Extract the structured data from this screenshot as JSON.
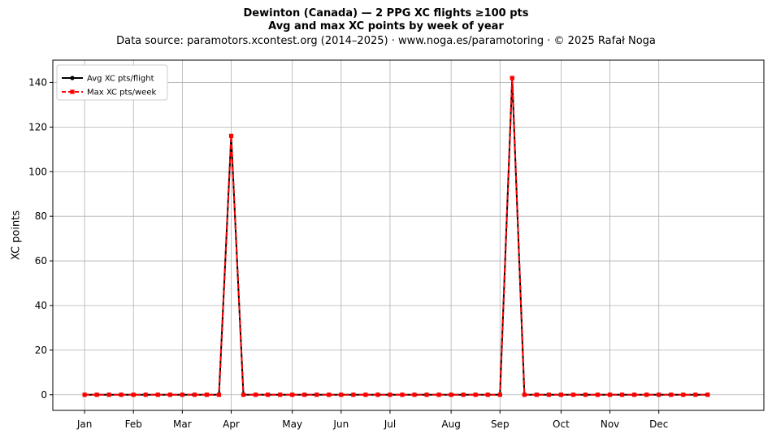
{
  "figure": {
    "title_line1": "Dewinton (Canada)  —  2 PPG XC flights ≥100 pts",
    "title_line2": "Avg and max XC points by week of year",
    "subtitle": "Data source: paramotors.xcontest.org (2014–2025)  ·  www.noga.es/paramotoring  ·  © 2025 Rafał Noga"
  },
  "chart_data": {
    "type": "line",
    "ylabel": "XC points",
    "xlabel": "",
    "ylim": [
      -7,
      150
    ],
    "xlim": [
      -2.6,
      55.6
    ],
    "y_ticks": [
      0,
      20,
      40,
      60,
      80,
      100,
      120,
      140
    ],
    "x_ticks": [
      {
        "label": "Jan",
        "week": 0
      },
      {
        "label": "Feb",
        "week": 4
      },
      {
        "label": "Mar",
        "week": 8
      },
      {
        "label": "Apr",
        "week": 12
      },
      {
        "label": "May",
        "week": 17
      },
      {
        "label": "Jun",
        "week": 21
      },
      {
        "label": "Jul",
        "week": 25
      },
      {
        "label": "Aug",
        "week": 30
      },
      {
        "label": "Sep",
        "week": 34
      },
      {
        "label": "Oct",
        "week": 39
      },
      {
        "label": "Nov",
        "week": 43
      },
      {
        "label": "Dec",
        "week": 47
      }
    ],
    "grid": true,
    "legend_position": "top-left",
    "x": [
      0,
      1,
      2,
      3,
      4,
      5,
      6,
      7,
      8,
      9,
      10,
      11,
      12,
      13,
      14,
      15,
      16,
      17,
      18,
      19,
      20,
      21,
      22,
      23,
      24,
      25,
      26,
      27,
      28,
      29,
      30,
      31,
      32,
      33,
      34,
      35,
      36,
      37,
      38,
      39,
      40,
      41,
      42,
      43,
      44,
      45,
      46,
      47,
      48,
      49,
      50,
      51
    ],
    "series": [
      {
        "name": "Avg XC pts/flight",
        "color": "#000000",
        "style": "solid",
        "marker": "circle",
        "values": [
          0,
          0,
          0,
          0,
          0,
          0,
          0,
          0,
          0,
          0,
          0,
          0,
          116,
          0,
          0,
          0,
          0,
          0,
          0,
          0,
          0,
          0,
          0,
          0,
          0,
          0,
          0,
          0,
          0,
          0,
          0,
          0,
          0,
          0,
          0,
          142,
          0,
          0,
          0,
          0,
          0,
          0,
          0,
          0,
          0,
          0,
          0,
          0,
          0,
          0,
          0,
          0
        ]
      },
      {
        "name": "Max XC pts/week",
        "color": "#ff0000",
        "style": "dashed",
        "marker": "square",
        "values": [
          0,
          0,
          0,
          0,
          0,
          0,
          0,
          0,
          0,
          0,
          0,
          0,
          116,
          0,
          0,
          0,
          0,
          0,
          0,
          0,
          0,
          0,
          0,
          0,
          0,
          0,
          0,
          0,
          0,
          0,
          0,
          0,
          0,
          0,
          0,
          142,
          0,
          0,
          0,
          0,
          0,
          0,
          0,
          0,
          0,
          0,
          0,
          0,
          0,
          0,
          0,
          0
        ]
      }
    ]
  }
}
